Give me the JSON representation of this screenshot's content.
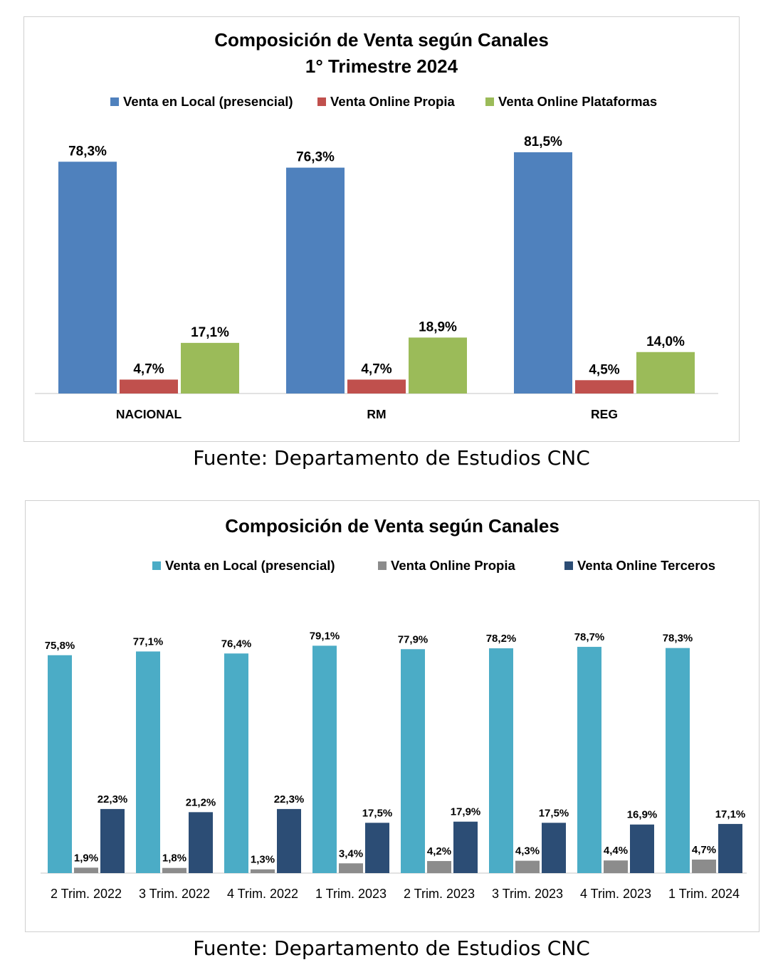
{
  "charts": [
    {
      "chart_data": {
        "type": "bar",
        "title_line1": "Composición de Venta según Canales",
        "title_line2": "1° Trimestre 2024",
        "categories": [
          "NACIONAL",
          "RM",
          "REG"
        ],
        "series": [
          {
            "name": "Venta en Local (presencial)",
            "color": "#4f81bd",
            "values": [
              78.3,
              76.3,
              81.5
            ],
            "labels": [
              "78,3%",
              "76,3%",
              "81,5%"
            ]
          },
          {
            "name": "Venta  Online Propia",
            "color": "#c0504d",
            "values": [
              4.7,
              4.7,
              4.5
            ],
            "labels": [
              "4,7%",
              "4,7%",
              "4,5%"
            ]
          },
          {
            "name": "Venta  Online Plataformas",
            "color": "#9bbb59",
            "values": [
              17.1,
              18.9,
              14.0
            ],
            "labels": [
              "17,1%",
              "18,9%",
              "14,0%"
            ]
          }
        ],
        "ylim": [
          0,
          100
        ],
        "grid": false,
        "legend": "top"
      },
      "source": "Fuente: Departamento de Estudios CNC"
    },
    {
      "chart_data": {
        "type": "bar",
        "title_line1": "Composición de Venta según Canales",
        "categories": [
          "2 Trim. 2022",
          "3 Trim. 2022",
          "4 Trim. 2022",
          "1 Trim. 2023",
          "2 Trim. 2023",
          "3 Trim. 2023",
          "4 Trim. 2023",
          "1 Trim. 2024"
        ],
        "series": [
          {
            "name": "Venta en Local (presencial)",
            "color": "#4bacc6",
            "values": [
              75.8,
              77.1,
              76.4,
              79.1,
              77.9,
              78.2,
              78.7,
              78.3
            ],
            "labels": [
              "75,8%",
              "77,1%",
              "76,4%",
              "79,1%",
              "77,9%",
              "78,2%",
              "78,7%",
              "78,3%"
            ]
          },
          {
            "name": "Venta  Online Propia",
            "color": "#8c8c8c",
            "values": [
              1.9,
              1.8,
              1.3,
              3.4,
              4.2,
              4.3,
              4.4,
              4.7
            ],
            "labels": [
              "1,9%",
              "1,8%",
              "1,3%",
              "3,4%",
              "4,2%",
              "4,3%",
              "4,4%",
              "4,7%"
            ]
          },
          {
            "name": "Venta  Online Terceros",
            "color": "#2c4d75",
            "values": [
              22.3,
              21.2,
              22.3,
              17.5,
              17.9,
              17.5,
              16.9,
              17.1
            ],
            "labels": [
              "22,3%",
              "21,2%",
              "22,3%",
              "17,5%",
              "17,9%",
              "17,5%",
              "16,9%",
              "17,1%"
            ]
          }
        ],
        "ylim": [
          0,
          100
        ],
        "grid": false,
        "legend": "top"
      },
      "source": "Fuente: Departamento de Estudios CNC"
    }
  ]
}
